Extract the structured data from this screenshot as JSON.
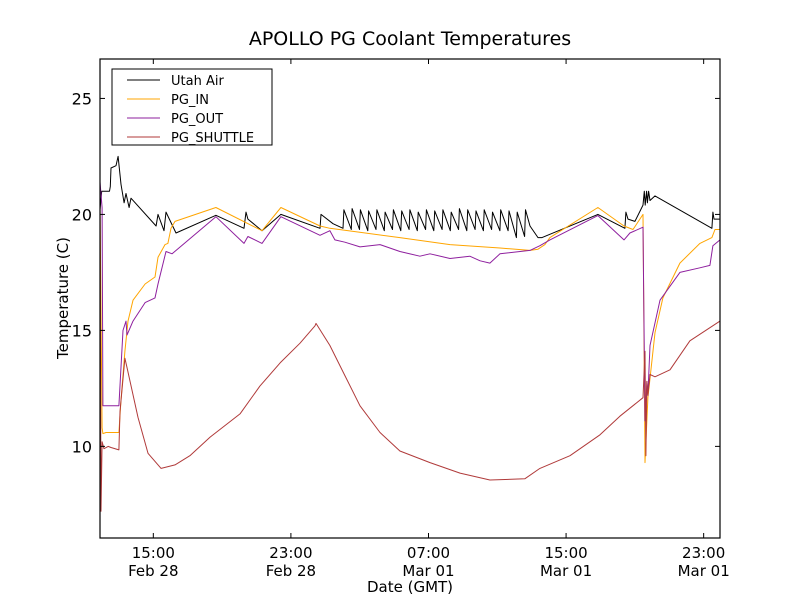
{
  "chart_data": {
    "type": "line",
    "title": "APOLLO PG Coolant Temperatures",
    "xlabel": "Date (GMT)",
    "ylabel": "Temperature (C)",
    "x_units": "hours since 00:00 Feb 28 (GMT)",
    "xlim": [
      11.9,
      47.95
    ],
    "ylim": [
      6.05,
      26.7
    ],
    "grid": false,
    "legend_position": "top-left",
    "x_ticks": [
      {
        "value": 15,
        "line1": "15:00",
        "line2": "Feb 28"
      },
      {
        "value": 23,
        "line1": "23:00",
        "line2": "Feb 28"
      },
      {
        "value": 31,
        "line1": "07:00",
        "line2": "Mar 01"
      },
      {
        "value": 39,
        "line1": "15:00",
        "line2": "Mar 01"
      },
      {
        "value": 47,
        "line1": "23:00",
        "line2": "Mar 01"
      }
    ],
    "y_ticks": [
      {
        "value": 10,
        "label": "10"
      },
      {
        "value": 15,
        "label": "15"
      },
      {
        "value": 20,
        "label": "20"
      },
      {
        "value": 25,
        "label": "25"
      }
    ],
    "series": [
      {
        "name": "Utah Air",
        "color": "#000000",
        "points": [
          [
            11.9,
            20.2
          ],
          [
            12.0,
            21.0
          ],
          [
            12.45,
            21.0
          ],
          [
            12.5,
            21.2
          ],
          [
            12.54,
            22.0
          ],
          [
            12.83,
            22.1
          ],
          [
            12.95,
            22.5
          ],
          [
            13.12,
            21.3
          ],
          [
            13.3,
            20.5
          ],
          [
            13.41,
            20.9
          ],
          [
            13.59,
            20.3
          ],
          [
            13.7,
            20.7
          ],
          [
            15.16,
            19.5
          ],
          [
            15.27,
            20.0
          ],
          [
            15.62,
            19.3
          ],
          [
            15.74,
            20.1
          ],
          [
            16.32,
            19.2
          ],
          [
            18.64,
            19.96
          ],
          [
            20.27,
            19.4
          ],
          [
            20.39,
            20.1
          ],
          [
            20.5,
            19.8
          ],
          [
            21.32,
            19.3
          ],
          [
            22.42,
            20.0
          ],
          [
            24.69,
            19.4
          ],
          [
            24.75,
            20.0
          ],
          [
            25.45,
            19.6
          ],
          [
            26.03,
            19.4
          ],
          [
            26.08,
            20.2
          ],
          [
            26.51,
            19.35
          ],
          [
            26.56,
            20.25
          ],
          [
            26.99,
            19.35
          ],
          [
            27.04,
            20.2
          ],
          [
            27.47,
            19.3
          ],
          [
            27.52,
            20.15
          ],
          [
            27.95,
            19.35
          ],
          [
            28.0,
            20.2
          ],
          [
            28.43,
            19.3
          ],
          [
            28.48,
            20.1
          ],
          [
            28.91,
            19.35
          ],
          [
            28.96,
            20.2
          ],
          [
            29.39,
            19.3
          ],
          [
            29.44,
            20.15
          ],
          [
            29.87,
            19.35
          ],
          [
            29.92,
            20.2
          ],
          [
            30.35,
            19.3
          ],
          [
            30.4,
            20.1
          ],
          [
            30.83,
            19.35
          ],
          [
            30.88,
            20.2
          ],
          [
            31.31,
            19.3
          ],
          [
            31.36,
            20.15
          ],
          [
            31.79,
            19.35
          ],
          [
            31.84,
            20.2
          ],
          [
            32.27,
            19.3
          ],
          [
            32.32,
            20.1
          ],
          [
            32.75,
            19.35
          ],
          [
            32.8,
            20.25
          ],
          [
            33.23,
            19.3
          ],
          [
            33.28,
            20.2
          ],
          [
            33.71,
            19.35
          ],
          [
            33.76,
            20.15
          ],
          [
            34.19,
            19.3
          ],
          [
            34.24,
            20.2
          ],
          [
            34.67,
            19.35
          ],
          [
            34.72,
            20.1
          ],
          [
            35.15,
            19.3
          ],
          [
            35.2,
            20.2
          ],
          [
            35.63,
            19.3
          ],
          [
            35.68,
            20.15
          ],
          [
            36.11,
            19.0
          ],
          [
            36.16,
            20.1
          ],
          [
            36.59,
            19.05
          ],
          [
            36.64,
            20.2
          ],
          [
            36.9,
            19.5
          ],
          [
            37.37,
            19.0
          ],
          [
            37.6,
            19.0
          ],
          [
            40.85,
            20.0
          ],
          [
            42.42,
            19.4
          ],
          [
            42.48,
            20.1
          ],
          [
            42.6,
            19.8
          ],
          [
            43.0,
            19.7
          ],
          [
            43.47,
            20.4
          ],
          [
            43.55,
            21.0
          ],
          [
            43.6,
            20.4
          ],
          [
            43.68,
            21.0
          ],
          [
            43.73,
            20.5
          ],
          [
            43.8,
            21.0
          ],
          [
            43.88,
            20.6
          ],
          [
            44.17,
            20.8
          ],
          [
            47.48,
            19.4
          ],
          [
            47.54,
            20.1
          ],
          [
            47.6,
            19.8
          ],
          [
            47.95,
            19.8
          ]
        ]
      },
      {
        "name": "PG_IN",
        "color": "#ffa500",
        "points": [
          [
            11.9,
            20.4
          ],
          [
            12.02,
            10.8
          ],
          [
            12.07,
            10.55
          ],
          [
            12.25,
            10.6
          ],
          [
            13.0,
            10.6
          ],
          [
            13.12,
            12.0
          ],
          [
            13.35,
            14.1
          ],
          [
            13.53,
            15.4
          ],
          [
            13.82,
            16.3
          ],
          [
            14.52,
            17.0
          ],
          [
            15.1,
            17.3
          ],
          [
            15.27,
            18.15
          ],
          [
            15.68,
            18.7
          ],
          [
            15.85,
            18.75
          ],
          [
            16.03,
            19.4
          ],
          [
            16.26,
            19.7
          ],
          [
            18.64,
            20.3
          ],
          [
            21.32,
            19.3
          ],
          [
            22.42,
            20.3
          ],
          [
            24.69,
            19.5
          ],
          [
            25.27,
            19.4
          ],
          [
            29.34,
            19.0
          ],
          [
            32.25,
            18.7
          ],
          [
            35.16,
            18.55
          ],
          [
            36.9,
            18.45
          ],
          [
            37.37,
            18.5
          ],
          [
            37.77,
            18.7
          ],
          [
            38.06,
            19.0
          ],
          [
            40.85,
            20.3
          ],
          [
            42.37,
            19.5
          ],
          [
            42.89,
            19.35
          ],
          [
            43.47,
            20.0
          ],
          [
            43.59,
            9.3
          ],
          [
            43.76,
            12.1
          ],
          [
            44.17,
            14.9
          ],
          [
            44.63,
            16.4
          ],
          [
            45.62,
            17.9
          ],
          [
            46.78,
            18.75
          ],
          [
            47.48,
            19.0
          ],
          [
            47.66,
            19.35
          ],
          [
            47.95,
            19.35
          ]
        ]
      },
      {
        "name": "PG_OUT",
        "color": "#8e1f9e",
        "points": [
          [
            11.9,
            21.4
          ],
          [
            12.02,
            20.3
          ],
          [
            12.07,
            11.75
          ],
          [
            12.19,
            11.75
          ],
          [
            13.0,
            11.75
          ],
          [
            13.24,
            15.0
          ],
          [
            13.41,
            15.4
          ],
          [
            13.47,
            14.8
          ],
          [
            13.82,
            15.4
          ],
          [
            14.52,
            16.2
          ],
          [
            15.1,
            16.4
          ],
          [
            15.27,
            17.0
          ],
          [
            15.74,
            18.4
          ],
          [
            16.09,
            18.3
          ],
          [
            18.64,
            19.9
          ],
          [
            20.27,
            18.75
          ],
          [
            20.5,
            19.05
          ],
          [
            21.32,
            18.75
          ],
          [
            22.42,
            19.9
          ],
          [
            24.69,
            19.1
          ],
          [
            25.27,
            19.3
          ],
          [
            25.56,
            18.9
          ],
          [
            26.14,
            18.8
          ],
          [
            27.02,
            18.6
          ],
          [
            28.18,
            18.7
          ],
          [
            29.34,
            18.4
          ],
          [
            30.5,
            18.2
          ],
          [
            31.09,
            18.3
          ],
          [
            32.25,
            18.1
          ],
          [
            33.4,
            18.2
          ],
          [
            34.0,
            18.0
          ],
          [
            34.57,
            17.9
          ],
          [
            35.16,
            18.3
          ],
          [
            36.9,
            18.45
          ],
          [
            37.48,
            18.65
          ],
          [
            38.06,
            18.9
          ],
          [
            40.85,
            19.95
          ],
          [
            42.37,
            18.9
          ],
          [
            42.71,
            19.2
          ],
          [
            43.47,
            19.45
          ],
          [
            43.59,
            11.1
          ],
          [
            43.7,
            12.8
          ],
          [
            43.76,
            12.2
          ],
          [
            43.88,
            14.35
          ],
          [
            44.46,
            16.3
          ],
          [
            45.62,
            17.5
          ],
          [
            46.78,
            17.7
          ],
          [
            47.36,
            17.8
          ],
          [
            47.54,
            18.65
          ],
          [
            47.95,
            18.9
          ]
        ]
      },
      {
        "name": "PG_SHUTTLE",
        "color": "#b03a3a",
        "points": [
          [
            11.9,
            20.5
          ],
          [
            11.96,
            7.2
          ],
          [
            12.02,
            10.2
          ],
          [
            12.13,
            9.9
          ],
          [
            12.37,
            10.0
          ],
          [
            12.54,
            9.95
          ],
          [
            13.0,
            9.85
          ],
          [
            13.06,
            11.5
          ],
          [
            13.35,
            13.8
          ],
          [
            13.47,
            13.4
          ],
          [
            14.11,
            11.25
          ],
          [
            14.69,
            9.7
          ],
          [
            15.45,
            9.05
          ],
          [
            16.26,
            9.2
          ],
          [
            17.13,
            9.6
          ],
          [
            18.3,
            10.4
          ],
          [
            20.04,
            11.4
          ],
          [
            21.2,
            12.6
          ],
          [
            22.37,
            13.6
          ],
          [
            23.53,
            14.45
          ],
          [
            24.4,
            15.2
          ],
          [
            24.46,
            15.3
          ],
          [
            25.27,
            14.35
          ],
          [
            26.14,
            13.05
          ],
          [
            27.02,
            11.75
          ],
          [
            28.18,
            10.6
          ],
          [
            29.34,
            9.8
          ],
          [
            31.09,
            9.3
          ],
          [
            32.83,
            8.85
          ],
          [
            34.57,
            8.55
          ],
          [
            36.6,
            8.6
          ],
          [
            37.48,
            9.05
          ],
          [
            39.23,
            9.6
          ],
          [
            40.97,
            10.5
          ],
          [
            42.13,
            11.3
          ],
          [
            43.47,
            12.1
          ],
          [
            43.59,
            14.1
          ],
          [
            43.64,
            9.6
          ],
          [
            43.7,
            12.8
          ],
          [
            43.76,
            12.2
          ],
          [
            43.88,
            13.1
          ],
          [
            44.17,
            13.0
          ],
          [
            45.04,
            13.3
          ],
          [
            46.2,
            14.55
          ],
          [
            47.95,
            15.4
          ]
        ]
      }
    ]
  }
}
